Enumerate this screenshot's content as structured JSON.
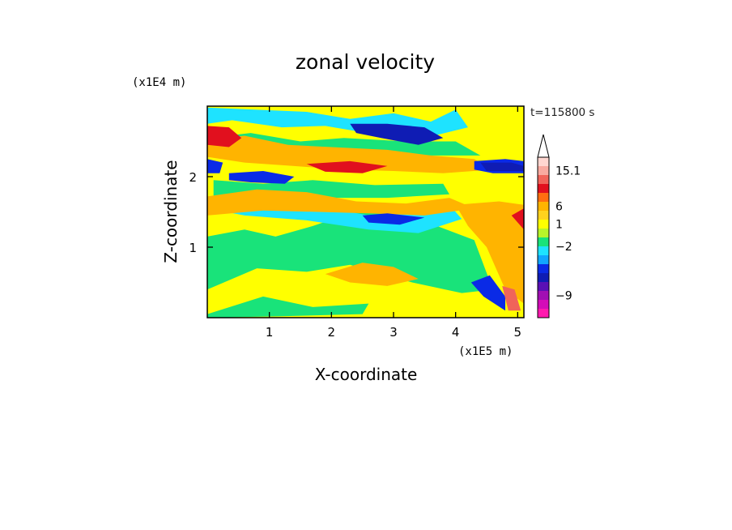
{
  "chart_data": {
    "type": "heatmap",
    "title": "zonal velocity",
    "xlabel": "X-coordinate",
    "ylabel": "Z-coordinate",
    "x_multiplier": "(x1E5 m)",
    "y_multiplier": "(x1E4 m)",
    "time_label": "t=115800 s",
    "xlim": [
      0,
      5.1
    ],
    "ylim": [
      0,
      3.0
    ],
    "x_ticks": [
      1,
      2,
      3,
      4,
      5
    ],
    "y_ticks": [
      1,
      2
    ],
    "x_tick_labels": [
      "1",
      "2",
      "3",
      "4",
      "5"
    ],
    "y_tick_labels": [
      "1",
      "2"
    ],
    "colorbar": {
      "colors": [
        "#ff19ae",
        "#d40cb8",
        "#a10fb3",
        "#5a10b5",
        "#0f1cb4",
        "#0a2ae6",
        "#11a6ff",
        "#1ee3ff",
        "#19e37a",
        "#b8f52a",
        "#ffff00",
        "#ffd21e",
        "#ffb400",
        "#ff6e10",
        "#e1101e",
        "#f0645a",
        "#f8aaa0",
        "#ffd6d0"
      ],
      "labels": [
        "15.1",
        "6",
        "1",
        "-2",
        "-9"
      ],
      "label_positions": [
        16.5,
        12.5,
        10.5,
        8.0,
        2.5
      ],
      "extend": "max"
    },
    "regions": [
      {
        "value": 10,
        "label": "yellow background",
        "poly": [
          [
            0,
            0
          ],
          [
            5.1,
            0
          ],
          [
            5.1,
            3
          ],
          [
            0,
            3
          ]
        ]
      },
      {
        "value": 8,
        "label": "green lower band",
        "poly": [
          [
            0,
            0.4
          ],
          [
            0.8,
            0.7
          ],
          [
            1.6,
            0.65
          ],
          [
            2.3,
            0.75
          ],
          [
            3.3,
            0.5
          ],
          [
            4.1,
            0.35
          ],
          [
            4.6,
            0.4
          ],
          [
            4.3,
            1.1
          ],
          [
            3.7,
            1.3
          ],
          [
            3.4,
            1.5
          ],
          [
            3.1,
            1.45
          ],
          [
            2.6,
            1.6
          ],
          [
            2.2,
            1.45
          ],
          [
            1.7,
            1.3
          ],
          [
            1.1,
            1.15
          ],
          [
            0.6,
            1.25
          ],
          [
            0,
            1.15
          ]
        ]
      },
      {
        "value": 8,
        "label": "green lower-left strip",
        "poly": [
          [
            0,
            0.05
          ],
          [
            0.9,
            0.3
          ],
          [
            1.7,
            0.15
          ],
          [
            2.6,
            0.2
          ],
          [
            2.5,
            0.05
          ],
          [
            1.2,
            0.02
          ],
          [
            0,
            0.0
          ]
        ]
      },
      {
        "value": 8,
        "label": "green band upper",
        "poly": [
          [
            0,
            2.55
          ],
          [
            0.7,
            2.62
          ],
          [
            1.5,
            2.5
          ],
          [
            2.2,
            2.55
          ],
          [
            3.2,
            2.5
          ],
          [
            4.0,
            2.5
          ],
          [
            4.4,
            2.3
          ],
          [
            3.4,
            2.3
          ],
          [
            2.5,
            2.35
          ],
          [
            1.6,
            2.3
          ],
          [
            0.7,
            2.35
          ],
          [
            0,
            2.3
          ]
        ]
      },
      {
        "value": 8,
        "label": "green upper left",
        "poly": [
          [
            0.1,
            1.95
          ],
          [
            0.9,
            1.9
          ],
          [
            1.7,
            1.95
          ],
          [
            2.7,
            1.88
          ],
          [
            3.8,
            1.9
          ],
          [
            3.9,
            1.75
          ],
          [
            2.9,
            1.7
          ],
          [
            1.9,
            1.7
          ],
          [
            1.0,
            1.68
          ],
          [
            0.1,
            1.72
          ]
        ]
      },
      {
        "value": 7,
        "label": "cyan top band",
        "poly": [
          [
            0,
            2.98
          ],
          [
            1.6,
            2.92
          ],
          [
            2.3,
            2.82
          ],
          [
            3.0,
            2.9
          ],
          [
            3.6,
            2.78
          ],
          [
            4.0,
            2.95
          ],
          [
            4.2,
            2.7
          ],
          [
            3.5,
            2.55
          ],
          [
            2.7,
            2.6
          ],
          [
            1.9,
            2.72
          ],
          [
            1.2,
            2.7
          ],
          [
            0.4,
            2.8
          ],
          [
            0,
            2.75
          ]
        ]
      },
      {
        "value": 7,
        "label": "cyan mid band",
        "poly": [
          [
            0,
            1.72
          ],
          [
            1.1,
            1.62
          ],
          [
            2.0,
            1.55
          ],
          [
            2.6,
            1.45
          ],
          [
            3.3,
            1.5
          ],
          [
            3.9,
            1.6
          ],
          [
            4.1,
            1.4
          ],
          [
            3.4,
            1.2
          ],
          [
            2.6,
            1.25
          ],
          [
            1.6,
            1.38
          ],
          [
            0.6,
            1.45
          ],
          [
            0,
            1.55
          ]
        ]
      },
      {
        "value": 12,
        "label": "orange band 1",
        "poly": [
          [
            0,
            2.52
          ],
          [
            0.6,
            2.58
          ],
          [
            1.3,
            2.45
          ],
          [
            2.0,
            2.42
          ],
          [
            2.9,
            2.38
          ],
          [
            3.6,
            2.3
          ],
          [
            4.3,
            2.25
          ],
          [
            4.6,
            2.1
          ],
          [
            3.8,
            2.05
          ],
          [
            3.0,
            2.08
          ],
          [
            2.2,
            2.1
          ],
          [
            1.4,
            2.15
          ],
          [
            0.6,
            2.2
          ],
          [
            0,
            2.28
          ]
        ]
      },
      {
        "value": 12,
        "label": "orange band 2",
        "poly": [
          [
            0,
            1.72
          ],
          [
            0.8,
            1.82
          ],
          [
            1.6,
            1.78
          ],
          [
            2.4,
            1.65
          ],
          [
            3.2,
            1.62
          ],
          [
            3.9,
            1.7
          ],
          [
            4.3,
            1.55
          ],
          [
            3.5,
            1.45
          ],
          [
            2.6,
            1.48
          ],
          [
            1.8,
            1.5
          ],
          [
            0.9,
            1.52
          ],
          [
            0,
            1.45
          ]
        ]
      },
      {
        "value": 12,
        "label": "orange lower right",
        "poly": [
          [
            4.0,
            1.6
          ],
          [
            4.7,
            1.65
          ],
          [
            5.1,
            1.6
          ],
          [
            5.1,
            0.2
          ],
          [
            4.8,
            0.4
          ],
          [
            4.5,
            1.0
          ],
          [
            4.2,
            1.3
          ]
        ]
      },
      {
        "value": 12,
        "label": "orange lower mid",
        "poly": [
          [
            1.9,
            0.62
          ],
          [
            2.5,
            0.78
          ],
          [
            3.0,
            0.72
          ],
          [
            3.4,
            0.55
          ],
          [
            2.9,
            0.45
          ],
          [
            2.3,
            0.5
          ]
        ]
      },
      {
        "value": 14,
        "label": "red-orange upper left",
        "poly": [
          [
            0,
            2.72
          ],
          [
            0.35,
            2.7
          ],
          [
            0.55,
            2.55
          ],
          [
            0.35,
            2.42
          ],
          [
            0,
            2.45
          ]
        ]
      },
      {
        "value": 14,
        "label": "red-orange mid",
        "poly": [
          [
            1.6,
            2.18
          ],
          [
            2.3,
            2.22
          ],
          [
            2.9,
            2.15
          ],
          [
            2.5,
            2.05
          ],
          [
            1.9,
            2.07
          ]
        ]
      },
      {
        "value": 14,
        "label": "red-orange right",
        "poly": [
          [
            5.1,
            1.55
          ],
          [
            4.9,
            1.45
          ],
          [
            5.1,
            1.25
          ]
        ]
      },
      {
        "value": 5,
        "label": "blue upper-left lobe",
        "poly": [
          [
            0,
            2.25
          ],
          [
            0.25,
            2.2
          ],
          [
            0.2,
            2.05
          ],
          [
            0,
            2.05
          ]
        ]
      },
      {
        "value": 5,
        "label": "blue upper-left bar",
        "poly": [
          [
            0.35,
            2.05
          ],
          [
            0.9,
            2.08
          ],
          [
            1.4,
            2.0
          ],
          [
            1.25,
            1.9
          ],
          [
            0.7,
            1.92
          ],
          [
            0.35,
            1.95
          ]
        ]
      },
      {
        "value": 5,
        "label": "blue upper right",
        "poly": [
          [
            4.3,
            2.22
          ],
          [
            4.8,
            2.25
          ],
          [
            5.1,
            2.22
          ],
          [
            5.1,
            2.05
          ],
          [
            4.6,
            2.05
          ],
          [
            4.3,
            2.1
          ]
        ]
      },
      {
        "value": 5,
        "label": "blue mid band",
        "poly": [
          [
            2.5,
            1.45
          ],
          [
            2.9,
            1.48
          ],
          [
            3.5,
            1.42
          ],
          [
            3.1,
            1.32
          ],
          [
            2.6,
            1.35
          ]
        ]
      },
      {
        "value": 5,
        "label": "blue lower right",
        "poly": [
          [
            4.25,
            0.5
          ],
          [
            4.55,
            0.6
          ],
          [
            4.8,
            0.3
          ],
          [
            4.8,
            0.1
          ],
          [
            4.45,
            0.3
          ]
        ]
      },
      {
        "value": 4,
        "label": "dark blue top core",
        "poly": [
          [
            2.3,
            2.75
          ],
          [
            2.9,
            2.75
          ],
          [
            3.5,
            2.7
          ],
          [
            3.8,
            2.55
          ],
          [
            3.4,
            2.45
          ],
          [
            2.8,
            2.55
          ],
          [
            2.4,
            2.62
          ]
        ]
      },
      {
        "value": 4,
        "label": "dark blue right core",
        "poly": [
          [
            4.4,
            2.2
          ],
          [
            4.9,
            2.2
          ],
          [
            5.1,
            2.15
          ],
          [
            5.1,
            2.08
          ],
          [
            4.5,
            2.08
          ]
        ]
      },
      {
        "value": 15,
        "label": "salmon lower right",
        "poly": [
          [
            4.75,
            0.45
          ],
          [
            4.95,
            0.4
          ],
          [
            5.05,
            0.1
          ],
          [
            4.85,
            0.1
          ]
        ]
      }
    ]
  }
}
